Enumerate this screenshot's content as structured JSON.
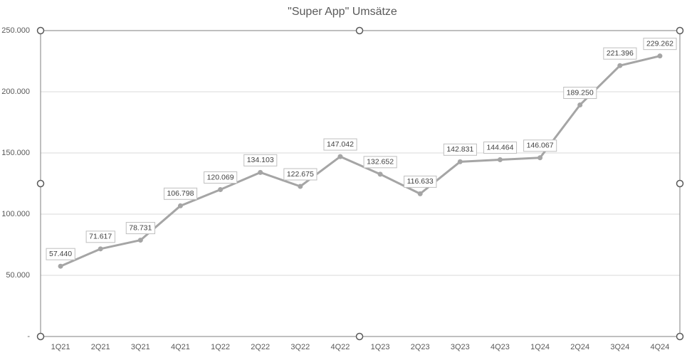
{
  "chart_data": {
    "type": "line",
    "title": "\"Super App\" Umsätze",
    "categories": [
      "1Q21",
      "2Q21",
      "3Q21",
      "4Q21",
      "1Q22",
      "2Q22",
      "3Q22",
      "4Q22",
      "1Q23",
      "2Q23",
      "3Q23",
      "4Q23",
      "1Q24",
      "2Q24",
      "3Q24",
      "4Q24"
    ],
    "values": [
      57440,
      71617,
      78731,
      106798,
      120069,
      134103,
      122675,
      147042,
      132652,
      116633,
      142831,
      144464,
      146067,
      189250,
      221396,
      229262
    ],
    "value_labels": [
      "57.440",
      "71.617",
      "78.731",
      "106.798",
      "120.069",
      "134.103",
      "122.675",
      "147.042",
      "132.652",
      "116.633",
      "142.831",
      "144.464",
      "146.067",
      "189.250",
      "221.396",
      "229.262"
    ],
    "color": "#a5a5a5",
    "ylim": [
      0,
      250000
    ],
    "yticks": [
      {
        "value": 0,
        "label": "-"
      },
      {
        "value": 50000,
        "label": "50.000"
      },
      {
        "value": 100000,
        "label": "100.000"
      },
      {
        "value": 150000,
        "label": "150.000"
      },
      {
        "value": 200000,
        "label": "200.000"
      },
      {
        "value": 250000,
        "label": "250.000"
      }
    ],
    "grid": true
  }
}
